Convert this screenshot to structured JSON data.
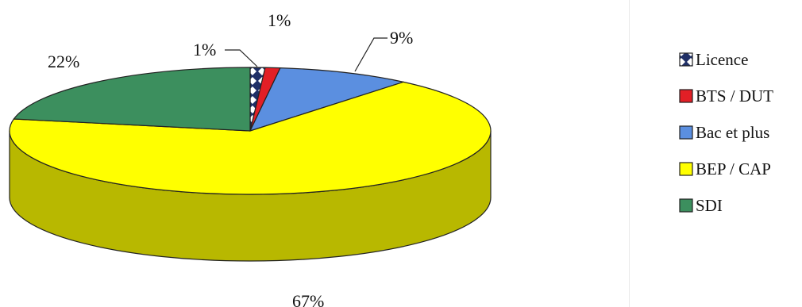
{
  "chart_data": {
    "type": "pie",
    "style": "3d",
    "series": [
      {
        "name": "Licence",
        "value": 1,
        "label": "1%",
        "color": "#1f2f66",
        "pattern": "diamond"
      },
      {
        "name": "BTS / DUT",
        "value": 1,
        "label": "1%",
        "color": "#e21f26"
      },
      {
        "name": "Bac et plus",
        "value": 9,
        "label": "9%",
        "color": "#5b8fe0"
      },
      {
        "name": "BEP / CAP",
        "value": 67,
        "label": "67%",
        "color": "#ffff00"
      },
      {
        "name": "SDI",
        "value": 22,
        "label": "22%",
        "color": "#3c8f5e"
      }
    ],
    "legend_position": "right"
  }
}
